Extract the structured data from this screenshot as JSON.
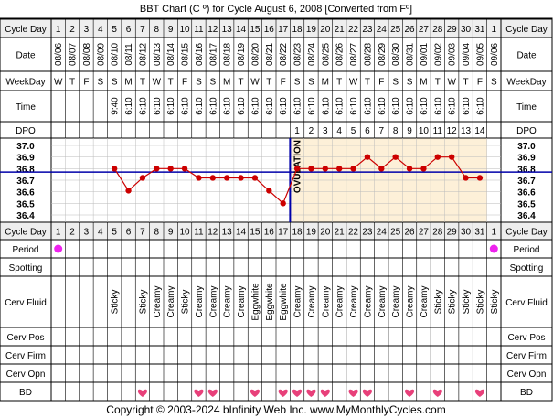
{
  "title": "BBT Chart (C º) for Cycle August 6, 2008  [Converted from Fº]",
  "copyright": "Copyright © 2003-2024 bInfinity Web Inc.     www.MyMonthlyCycles.com",
  "row_labels": {
    "cycle_day": "Cycle Day",
    "date": "Date",
    "weekday": "WeekDay",
    "time": "Time",
    "dpo": "DPO",
    "period": "Period",
    "spotting": "Spotting",
    "cerv_fluid": "Cerv Fluid",
    "cerv_pos": "Cerv Pos",
    "cerv_firm": "Cerv Firm",
    "cerv_opn": "Cerv Opn",
    "bd": "BD"
  },
  "ovulation_label": "OVULATION",
  "colors": {
    "temp_line": "#cc0000",
    "coverline": "#0000aa",
    "ovulation_line": "#0000aa",
    "luteal_bg": "#fdf0d8",
    "period_dot": "#ee22ee",
    "bd_heart": "#e8407a",
    "header_bg": "#eeeeee"
  },
  "cycle_days": [
    "1",
    "2",
    "3",
    "4",
    "5",
    "6",
    "7",
    "8",
    "9",
    "10",
    "11",
    "12",
    "13",
    "14",
    "15",
    "16",
    "17",
    "18",
    "19",
    "20",
    "21",
    "22",
    "23",
    "24",
    "25",
    "26",
    "27",
    "28",
    "29",
    "30",
    "31",
    "1"
  ],
  "dates": [
    "08/06",
    "08/07",
    "08/08",
    "08/09",
    "08/10",
    "08/11",
    "08/12",
    "08/13",
    "08/14",
    "08/15",
    "08/16",
    "08/17",
    "08/18",
    "08/19",
    "08/20",
    "08/21",
    "08/22",
    "08/23",
    "08/24",
    "08/25",
    "08/26",
    "08/27",
    "08/28",
    "08/29",
    "08/30",
    "08/31",
    "09/01",
    "09/02",
    "09/03",
    "09/04",
    "09/05",
    "09/06"
  ],
  "weekdays": [
    "W",
    "T",
    "F",
    "S",
    "S",
    "M",
    "T",
    "W",
    "T",
    "F",
    "S",
    "S",
    "M",
    "T",
    "W",
    "T",
    "F",
    "S",
    "S",
    "M",
    "T",
    "W",
    "T",
    "F",
    "S",
    "S",
    "M",
    "T",
    "W",
    "T",
    "F",
    "S"
  ],
  "times": [
    "",
    "",
    "",
    "",
    "9:40",
    "6:10",
    "6:10",
    "6:10",
    "6:10",
    "6:10",
    "6:10",
    "6:10",
    "6:10",
    "6:10",
    "6:10",
    "6:10",
    "6:10",
    "6:10",
    "6:10",
    "6:10",
    "6:10",
    "6:10",
    "6:10",
    "6:10",
    "6:10",
    "6:10",
    "6:10",
    "6:10",
    "6:10",
    "6:10",
    "6:10",
    ""
  ],
  "dpo": [
    "",
    "",
    "",
    "",
    "",
    "",
    "",
    "",
    "",
    "",
    "",
    "",
    "",
    "",
    "",
    "",
    "",
    "1",
    "2",
    "3",
    "4",
    "5",
    "6",
    "7",
    "8",
    "9",
    "10",
    "11",
    "12",
    "13",
    "14",
    ""
  ],
  "period": [
    true,
    false,
    false,
    false,
    false,
    false,
    false,
    false,
    false,
    false,
    false,
    false,
    false,
    false,
    false,
    false,
    false,
    false,
    false,
    false,
    false,
    false,
    false,
    false,
    false,
    false,
    false,
    false,
    false,
    false,
    false,
    true
  ],
  "cerv_fluid": [
    "",
    "",
    "",
    "",
    "Sticky",
    "",
    "Sticky",
    "Creamy",
    "Creamy",
    "Sticky",
    "Creamy",
    "Creamy",
    "Creamy",
    "Creamy",
    "Eggwhite",
    "Eggwhite",
    "Eggwhite",
    "Creamy",
    "Creamy",
    "Creamy",
    "Creamy",
    "Creamy",
    "Creamy",
    "Creamy",
    "Creamy",
    "Creamy",
    "Creamy",
    "Sticky",
    "Sticky",
    "Sticky",
    "Sticky",
    "Sticky"
  ],
  "bd": [
    false,
    false,
    false,
    false,
    false,
    false,
    true,
    false,
    false,
    false,
    true,
    true,
    false,
    false,
    true,
    false,
    true,
    true,
    true,
    true,
    false,
    true,
    true,
    false,
    false,
    true,
    false,
    true,
    false,
    false,
    true,
    false
  ],
  "chart_data": {
    "type": "line",
    "title": "BBT Chart (C º) for Cycle August 6, 2008  [Converted from Fº]",
    "xlabel": "Cycle Day",
    "ylabel": "",
    "ylim": [
      36.4,
      37.0
    ],
    "y_ticks": [
      "37.0",
      "36.9",
      "36.8",
      "36.7",
      "36.6",
      "36.5",
      "36.4"
    ],
    "grid": true,
    "x": [
      1,
      2,
      3,
      4,
      5,
      6,
      7,
      8,
      9,
      10,
      11,
      12,
      13,
      14,
      15,
      16,
      17,
      18,
      19,
      20,
      21,
      22,
      23,
      24,
      25,
      26,
      27,
      28,
      29,
      30,
      31,
      32
    ],
    "series": [
      {
        "values": [
          null,
          null,
          null,
          null,
          36.8,
          36.61,
          36.72,
          36.8,
          36.8,
          36.8,
          36.72,
          36.72,
          36.72,
          36.72,
          36.72,
          36.61,
          36.5,
          36.8,
          36.8,
          36.8,
          36.8,
          36.8,
          36.9,
          36.8,
          36.9,
          36.8,
          36.8,
          36.9,
          36.9,
          36.72,
          36.72,
          null
        ]
      }
    ],
    "coverline": 36.77,
    "ovulation_day": 17
  }
}
